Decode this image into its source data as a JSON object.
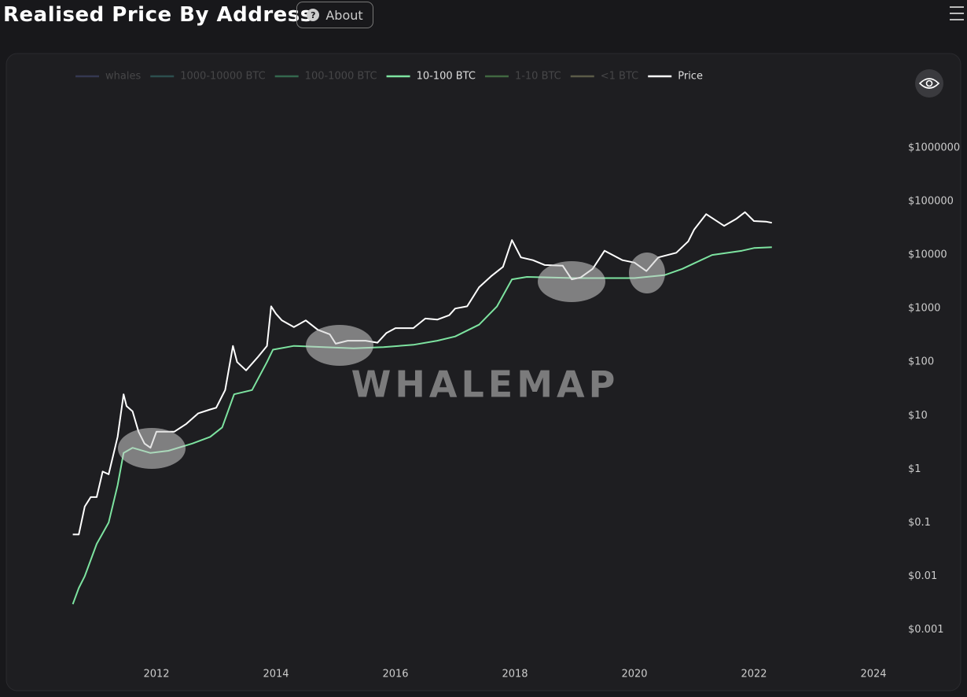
{
  "header": {
    "title": "Realised Price By Address",
    "about": "About"
  },
  "watermark": "WHALEMAP",
  "chart_data": {
    "type": "line",
    "ylog": true,
    "grid": false,
    "xlim": [
      2010,
      2025
    ],
    "xticks": [
      2012,
      2014,
      2016,
      2018,
      2020,
      2022,
      2024
    ],
    "ylim": [
      0.0003,
      10000000
    ],
    "yticks": [
      {
        "value": 1000000,
        "label": "$1000000"
      },
      {
        "value": 100000,
        "label": "$100000"
      },
      {
        "value": 10000,
        "label": "$10000"
      },
      {
        "value": 1000,
        "label": "$1000"
      },
      {
        "value": 100,
        "label": "$100"
      },
      {
        "value": 10,
        "label": "$10"
      },
      {
        "value": 1,
        "label": "$1"
      },
      {
        "value": 0.1,
        "label": "$0.1"
      },
      {
        "value": 0.01,
        "label": "$0.01"
      },
      {
        "value": 0.001,
        "label": "$0.001"
      }
    ],
    "series": [
      {
        "name": "whales",
        "color": "#3a3f5c",
        "visible": false
      },
      {
        "name": "1000-10000 BTC",
        "color": "#2f5a5a",
        "visible": false
      },
      {
        "name": "100-1000 BTC",
        "color": "#3a7a5a",
        "visible": false
      },
      {
        "name": "10-100 BTC",
        "color": "#7de3a0",
        "visible": true,
        "x": [
          2010.6,
          2010.7,
          2010.8,
          2011.0,
          2011.2,
          2011.35,
          2011.45,
          2011.6,
          2011.9,
          2012.2,
          2012.6,
          2012.9,
          2013.1,
          2013.3,
          2013.6,
          2013.85,
          2013.95,
          2014.3,
          2014.8,
          2015.3,
          2015.8,
          2016.3,
          2016.7,
          2017.0,
          2017.4,
          2017.7,
          2017.95,
          2018.2,
          2018.6,
          2019.0,
          2019.5,
          2020.0,
          2020.5,
          2020.8,
          2021.0,
          2021.3,
          2021.8,
          2022.0,
          2022.3
        ],
        "values": [
          0.003,
          0.006,
          0.01,
          0.04,
          0.1,
          0.5,
          2,
          2.5,
          2,
          2.2,
          3,
          4,
          6,
          25,
          30,
          100,
          170,
          200,
          190,
          180,
          190,
          210,
          250,
          300,
          500,
          1100,
          3500,
          3900,
          3800,
          3700,
          3700,
          3700,
          4200,
          5500,
          7000,
          10000,
          12000,
          13500,
          14000
        ]
      },
      {
        "name": "1-10 BTC",
        "color": "#4a7a4a",
        "visible": false
      },
      {
        "name": "<1 BTC",
        "color": "#6a6a52",
        "visible": false
      },
      {
        "name": "Price",
        "color": "#ffffff",
        "visible": true,
        "x": [
          2010.6,
          2010.7,
          2010.8,
          2010.9,
          2011.0,
          2011.1,
          2011.2,
          2011.35,
          2011.45,
          2011.5,
          2011.6,
          2011.7,
          2011.8,
          2011.9,
          2012.0,
          2012.1,
          2012.3,
          2012.5,
          2012.7,
          2012.9,
          2013.0,
          2013.15,
          2013.28,
          2013.35,
          2013.5,
          2013.7,
          2013.85,
          2013.92,
          2014.0,
          2014.1,
          2014.3,
          2014.5,
          2014.7,
          2014.9,
          2015.0,
          2015.2,
          2015.5,
          2015.7,
          2015.85,
          2016.0,
          2016.3,
          2016.5,
          2016.7,
          2016.9,
          2017.0,
          2017.2,
          2017.4,
          2017.6,
          2017.8,
          2017.95,
          2018.1,
          2018.3,
          2018.5,
          2018.8,
          2018.95,
          2019.1,
          2019.3,
          2019.5,
          2019.8,
          2020.0,
          2020.2,
          2020.4,
          2020.7,
          2020.9,
          2021.0,
          2021.2,
          2021.5,
          2021.7,
          2021.85,
          2022.0,
          2022.2,
          2022.3
        ],
        "values": [
          0.06,
          0.06,
          0.2,
          0.3,
          0.3,
          0.9,
          0.8,
          4,
          25,
          15,
          12,
          5,
          3,
          2.5,
          5,
          5,
          5,
          7,
          11,
          13,
          14,
          30,
          200,
          100,
          70,
          125,
          200,
          1100,
          800,
          600,
          450,
          600,
          400,
          330,
          220,
          250,
          250,
          230,
          350,
          430,
          430,
          650,
          620,
          750,
          1000,
          1100,
          2500,
          4000,
          6000,
          19000,
          9000,
          8000,
          6500,
          6300,
          3500,
          3800,
          5500,
          12000,
          8000,
          7200,
          5000,
          9000,
          11000,
          18000,
          30000,
          58000,
          35000,
          47000,
          63000,
          43000,
          42000,
          40000
        ]
      }
    ]
  }
}
